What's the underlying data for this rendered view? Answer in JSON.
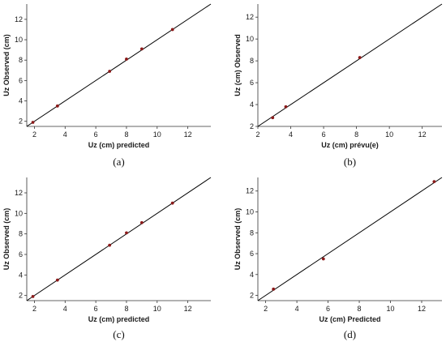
{
  "chart_data": [
    {
      "type": "scatter",
      "panel_label": "(a)",
      "xlabel": "Uz (cm) predicted",
      "ylabel": "Uz Observed (cm)",
      "xlim": [
        1.5,
        13.5
      ],
      "ylim": [
        1.5,
        13.5
      ],
      "xticks": [
        2,
        4,
        6,
        8,
        10,
        12
      ],
      "yticks": [
        2,
        4,
        6,
        8,
        10,
        12
      ],
      "points": [
        {
          "x": 1.9,
          "y": 1.9
        },
        {
          "x": 3.5,
          "y": 3.5
        },
        {
          "x": 6.9,
          "y": 6.9
        },
        {
          "x": 8.0,
          "y": 8.1
        },
        {
          "x": 9.0,
          "y": 9.1
        },
        {
          "x": 11.0,
          "y": 11.0
        }
      ],
      "fit_line": {
        "x": [
          1.5,
          13.5
        ],
        "y": [
          1.5,
          13.5
        ]
      }
    },
    {
      "type": "scatter",
      "panel_label": "(b)",
      "xlabel": "Uz (cm) prévu(e)",
      "ylabel": "Uz (cm) Observed",
      "xlim": [
        2,
        13.2
      ],
      "ylim": [
        2,
        13.2
      ],
      "xticks": [
        2,
        4,
        6,
        8,
        10,
        12
      ],
      "yticks": [
        2,
        4,
        6,
        8,
        10,
        12
      ],
      "points": [
        {
          "x": 2.9,
          "y": 2.8
        },
        {
          "x": 3.7,
          "y": 3.8
        },
        {
          "x": 8.2,
          "y": 8.3
        }
      ],
      "fit_line": {
        "x": [
          2,
          13.2
        ],
        "y": [
          2,
          13.2
        ]
      }
    },
    {
      "type": "scatter",
      "panel_label": "(c)",
      "xlabel": "Uz (cm) predicted",
      "ylabel": "Uz Observed (cm)",
      "xlim": [
        1.5,
        13.5
      ],
      "ylim": [
        1.5,
        13.5
      ],
      "xticks": [
        2,
        4,
        6,
        8,
        10,
        12
      ],
      "yticks": [
        2,
        4,
        6,
        8,
        10,
        12
      ],
      "points": [
        {
          "x": 1.9,
          "y": 1.9
        },
        {
          "x": 3.5,
          "y": 3.5
        },
        {
          "x": 6.9,
          "y": 6.9
        },
        {
          "x": 8.0,
          "y": 8.1
        },
        {
          "x": 9.0,
          "y": 9.1
        },
        {
          "x": 11.0,
          "y": 11.0
        }
      ],
      "fit_line": {
        "x": [
          1.5,
          13.5
        ],
        "y": [
          1.5,
          13.5
        ]
      }
    },
    {
      "type": "scatter",
      "panel_label": "(d)",
      "xlabel": "Uz (cm) Predicted",
      "ylabel": "Uz Observed (cm)",
      "xlim": [
        1.5,
        13.3
      ],
      "ylim": [
        1.5,
        13.3
      ],
      "xticks": [
        2,
        4,
        6,
        8,
        10,
        12
      ],
      "yticks": [
        2,
        4,
        6,
        8,
        10,
        12
      ],
      "points": [
        {
          "x": 2.5,
          "y": 2.6
        },
        {
          "x": 5.7,
          "y": 5.5
        },
        {
          "x": 12.8,
          "y": 12.9
        }
      ],
      "fit_line": {
        "x": [
          1.5,
          13.3
        ],
        "y": [
          1.5,
          13.3
        ]
      }
    }
  ]
}
